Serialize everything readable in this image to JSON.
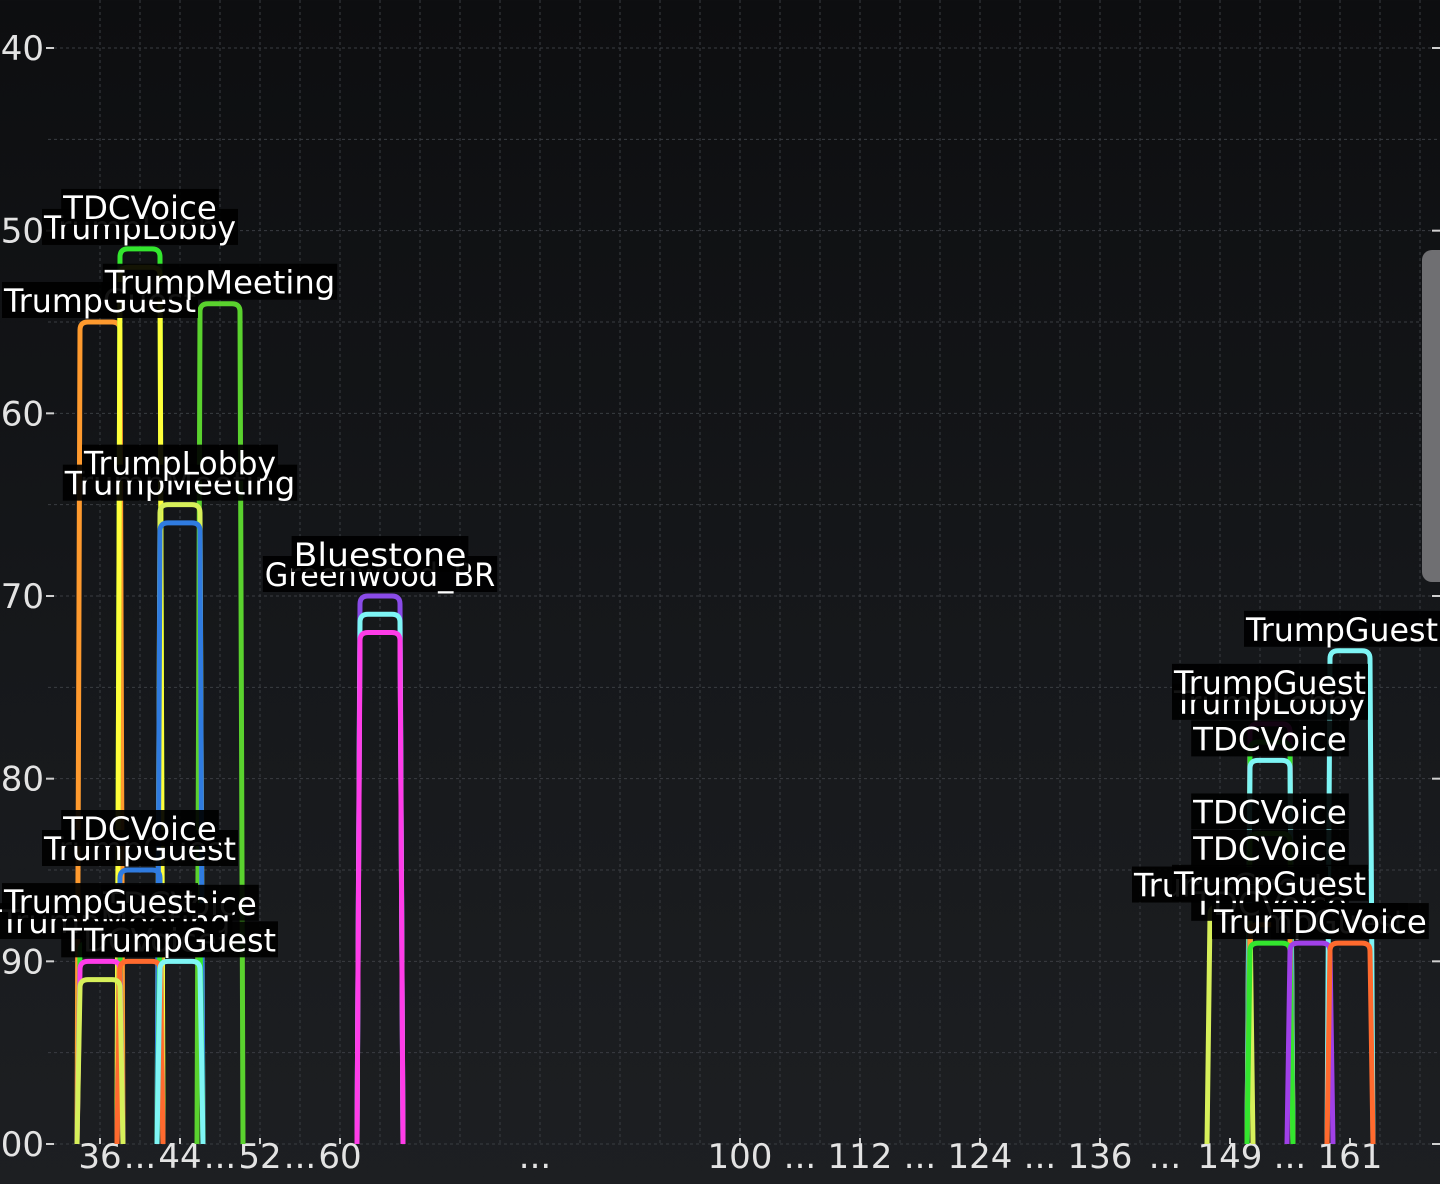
{
  "chart_data": {
    "type": "line",
    "ylim": [
      -100,
      -40
    ],
    "y_ticks": [
      {
        "value": -40,
        "label": "-40"
      },
      {
        "value": -50,
        "label": "-50"
      },
      {
        "value": -60,
        "label": "-60"
      },
      {
        "value": -70,
        "label": "-70"
      },
      {
        "value": -80,
        "label": "-80"
      },
      {
        "value": -90,
        "label": "-90"
      },
      {
        "value": -100,
        "label": "-100"
      }
    ],
    "x_ticks": [
      "36",
      "...",
      "44",
      "...",
      "52",
      "...",
      "60",
      "...",
      "100",
      "...",
      "112",
      "...",
      "124",
      "...",
      "136",
      "...",
      "149",
      "...",
      "161"
    ],
    "grid": true,
    "series": [
      {
        "name": "TrumpGuest",
        "channel": 36,
        "rssi": -55,
        "color": "#ff9a2e"
      },
      {
        "name": "TrumpLobby",
        "channel": 40,
        "rssi": -51,
        "color": "#33e62e"
      },
      {
        "name": "TDCVoice",
        "channel": 40,
        "rssi": -52,
        "color": "#ffff3a"
      },
      {
        "name": "TrumpMeeting",
        "channel": 48,
        "rssi": -54,
        "color": "#5ad22e"
      },
      {
        "name": "TrumpMeeting",
        "channel": 44,
        "rssi": -65,
        "color": "#d7f05a"
      },
      {
        "name": "TrumpLobby",
        "channel": 44,
        "rssi": -66,
        "color": "#2f7be0"
      },
      {
        "name": "Greenwood_BR",
        "channel": 64,
        "rssi": -70,
        "color": "#8a4be8"
      },
      {
        "name": "Bluestone",
        "channel": 64,
        "rssi": -71,
        "color": "#7ef5f5"
      },
      {
        "name": "",
        "channel": 64,
        "rssi": -72,
        "color": "#ff3ce8"
      },
      {
        "name": "TrumpGuest",
        "channel": 40,
        "rssi": -85,
        "color": "#2f7be0"
      },
      {
        "name": "TDCVoice",
        "channel": 40,
        "rssi": -86,
        "color": "#ff9a2e"
      },
      {
        "name": "TDCVoice",
        "channel": 44,
        "rssi": -88,
        "color": "#33e62e"
      },
      {
        "name": "TrumpMeeting",
        "channel": 36,
        "rssi": -89,
        "color": "#33e62e"
      },
      {
        "name": "TrumpGuest",
        "channel": 36,
        "rssi": -90,
        "color": "#ff3ce8"
      },
      {
        "name": "TDCVoice",
        "channel": 40,
        "rssi": -90,
        "color": "#ff6a2e"
      },
      {
        "name": "TrumpGuest",
        "channel": 44,
        "rssi": -90,
        "color": "#7ef5f5"
      },
      {
        "name": "",
        "channel": 36,
        "rssi": -91,
        "color": "#d7f05a"
      },
      {
        "name": "TrumpGuest",
        "channel": 161,
        "rssi": -73,
        "color": "#7ef5f5"
      },
      {
        "name": "TrumpLobby",
        "channel": 153,
        "rssi": -77,
        "color": "#ff3ce8"
      },
      {
        "name": "TrumpGuest",
        "channel": 153,
        "rssi": -78,
        "color": "#33e62e"
      },
      {
        "name": "TDCVoice",
        "channel": 153,
        "rssi": -79,
        "color": "#7ef5f5"
      },
      {
        "name": "TDCVoice",
        "channel": 153,
        "rssi": -83,
        "color": "#5ad22e"
      },
      {
        "name": "TDCVoice",
        "channel": 153,
        "rssi": -85,
        "color": "#2f9be0"
      },
      {
        "name": "TrumpGuest",
        "channel": 149,
        "rssi": -87,
        "color": "#d7f05a"
      },
      {
        "name": "TDCVoice",
        "channel": 153,
        "rssi": -88,
        "color": "#ff9a2e"
      },
      {
        "name": "TrumpGuest",
        "channel": 153,
        "rssi": -89,
        "color": "#33e62e"
      },
      {
        "name": "TrumpGuest",
        "channel": 157,
        "rssi": -89,
        "color": "#a040e8"
      },
      {
        "name": "TDCVoice",
        "channel": 161,
        "rssi": -89,
        "color": "#ff6a2e"
      }
    ]
  }
}
